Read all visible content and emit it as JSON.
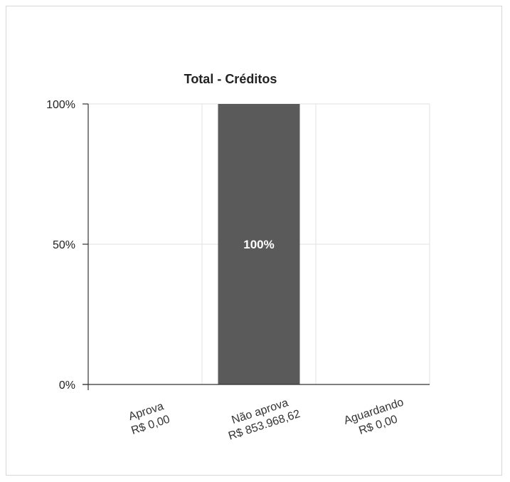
{
  "chart_data": {
    "type": "bar",
    "title": "Total - Créditos",
    "xlabel": "",
    "ylabel": "",
    "categories": [
      {
        "name": "Aprova",
        "amount": "R$ 0,00"
      },
      {
        "name": "Não aprova",
        "amount": "R$ 853.968,62"
      },
      {
        "name": "Aguardando",
        "amount": "R$ 0,00"
      }
    ],
    "values": [
      0,
      100,
      0
    ],
    "data_labels": [
      "",
      "100%",
      ""
    ],
    "ylim": [
      0,
      100
    ],
    "y_ticks": [
      "0%",
      "50%",
      "100%"
    ],
    "grid": true,
    "legend": "none",
    "colors": {
      "bar": "#5a5a5a",
      "grid": "#e2e2e2",
      "axis": "#333333"
    }
  }
}
